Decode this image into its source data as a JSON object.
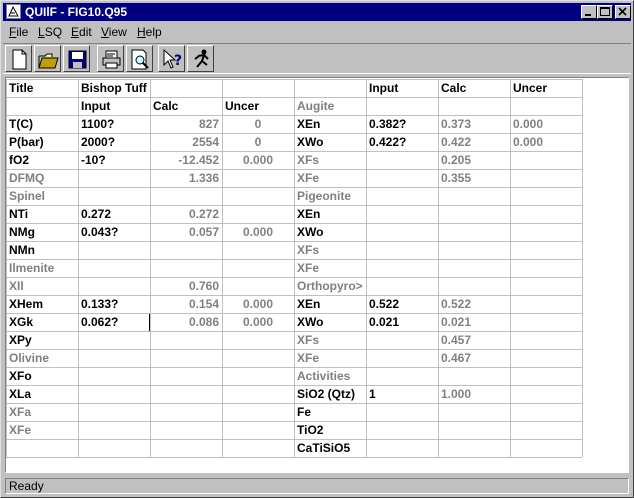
{
  "window": {
    "title": "QUIlF - FIG10.Q95"
  },
  "menubar": [
    {
      "accel": "F",
      "rest": "ile"
    },
    {
      "accel": "L",
      "rest": "SQ"
    },
    {
      "accel": "E",
      "rest": "dit"
    },
    {
      "accel": "V",
      "rest": "iew"
    },
    {
      "accel": "H",
      "rest": "elp"
    }
  ],
  "toolbar": [
    {
      "name": "new-file-icon"
    },
    {
      "name": "open-folder-icon"
    },
    {
      "name": "save-disk-icon"
    },
    {
      "name": "print-icon"
    },
    {
      "name": "print-preview-icon"
    },
    {
      "name": "context-help-icon"
    },
    {
      "name": "run-calculation-icon"
    }
  ],
  "colors": {
    "titlebar": "#000080",
    "grid_line": "#c0c0c0",
    "label_gray": "#808080"
  },
  "grid": {
    "rows": [
      [
        "Title",
        "Bishop Tuff",
        "",
        "",
        "",
        "Input",
        "Calc",
        "Uncer"
      ],
      [
        "",
        "Input",
        "Calc",
        "Uncer",
        "Augite",
        "",
        "",
        ""
      ],
      [
        "T(C)",
        "1100?",
        "827",
        "0",
        "XEn",
        "0.382?",
        "0.373",
        "0.000"
      ],
      [
        "P(bar)",
        "2000?",
        "2554",
        "0",
        "XWo",
        "0.422?",
        "0.422",
        "0.000"
      ],
      [
        "fO2",
        "-10?",
        "-12.452",
        "0.000",
        "XFs",
        "",
        "0.205",
        ""
      ],
      [
        "DFMQ",
        "",
        "1.336",
        "",
        "XFe",
        "",
        "0.355",
        ""
      ],
      [
        "Spinel",
        "",
        "",
        "",
        "Pigeonite",
        "",
        "",
        ""
      ],
      [
        "NTi",
        "0.272",
        "0.272",
        "",
        "XEn",
        "",
        "",
        ""
      ],
      [
        "NMg",
        "0.043?",
        "0.057",
        "0.000",
        "XWo",
        "",
        "",
        ""
      ],
      [
        "NMn",
        "",
        "",
        "",
        "XFs",
        "",
        "",
        ""
      ],
      [
        "Ilmenite",
        "",
        "",
        "",
        "XFe",
        "",
        "",
        ""
      ],
      [
        "XIl",
        "",
        "0.760",
        "",
        "Orthopyro>",
        "",
        "",
        ""
      ],
      [
        "XHem",
        "0.133?",
        "0.154",
        "0.000",
        "XEn",
        "0.522",
        "0.522",
        ""
      ],
      [
        "XGk",
        "0.062?",
        "0.086",
        "0.000",
        "XWo",
        "0.021",
        "0.021",
        ""
      ],
      [
        "XPy",
        "",
        "",
        "",
        "XFs",
        "",
        "0.457",
        ""
      ],
      [
        "Olivine",
        "",
        "",
        "",
        "XFe",
        "",
        "0.467",
        ""
      ],
      [
        "XFo",
        "",
        "",
        "",
        "Activities",
        "",
        "",
        ""
      ],
      [
        "XLa",
        "",
        "",
        "",
        "SiO2 (Qtz)",
        "1",
        "1.000",
        ""
      ],
      [
        "XFa",
        "",
        "",
        "",
        "Fe",
        "",
        "",
        ""
      ],
      [
        "XFe",
        "",
        "",
        "",
        "TiO2",
        "",
        "",
        ""
      ],
      [
        "",
        "",
        "",
        "",
        "CaTiSiO5",
        "",
        "",
        ""
      ]
    ],
    "gray_cells": [
      "1.4",
      "2.2",
      "2.3",
      "3.2",
      "3.3",
      "4.2",
      "4.3",
      "5.0",
      "5.2",
      "6.0",
      "6.4",
      "7.2",
      "8.2",
      "8.3",
      "9.4",
      "10.0",
      "10.4",
      "11.0",
      "11.2",
      "11.4",
      "12.2",
      "12.3",
      "12.6",
      "13.2",
      "13.3",
      "13.6",
      "14.4",
      "14.6",
      "15.0",
      "15.4",
      "15.6",
      "16.4",
      "17.6",
      "18.0",
      "19.0",
      "2.6",
      "2.7",
      "3.6",
      "3.7",
      "4.6",
      "4.4",
      "5.4",
      "5.6"
    ],
    "selected_cell": "13.1"
  },
  "status": {
    "text": "Ready"
  }
}
